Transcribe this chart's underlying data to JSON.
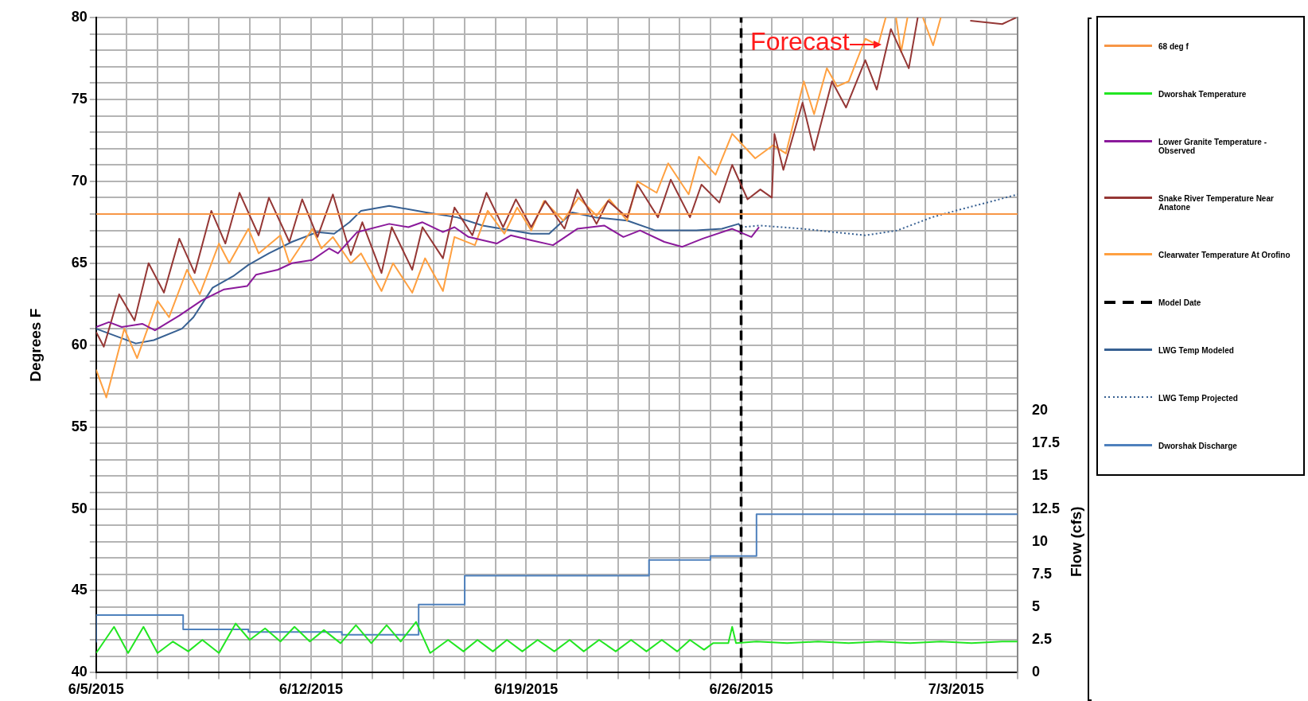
{
  "chart_data": {
    "type": "line",
    "ylabel": "Degrees F",
    "y2label": "Flow (cfs)",
    "xlim": [
      "2015-06-05",
      "2015-07-05"
    ],
    "xticks": [
      {
        "value": "2015-06-05",
        "label": "6/5/2015"
      },
      {
        "value": "2015-06-06",
        "label": null
      },
      {
        "value": "2015-06-07",
        "label": null
      },
      {
        "value": "2015-06-08",
        "label": null
      },
      {
        "value": "2015-06-09",
        "label": null
      },
      {
        "value": "2015-06-10",
        "label": null
      },
      {
        "value": "2015-06-11",
        "label": null
      },
      {
        "value": "2015-06-12",
        "label": "6/12/2015"
      },
      {
        "value": "2015-06-13",
        "label": null
      },
      {
        "value": "2015-06-14",
        "label": null
      },
      {
        "value": "2015-06-15",
        "label": null
      },
      {
        "value": "2015-06-16",
        "label": null
      },
      {
        "value": "2015-06-17",
        "label": null
      },
      {
        "value": "2015-06-18",
        "label": null
      },
      {
        "value": "2015-06-19",
        "label": "6/19/2015"
      },
      {
        "value": "2015-06-20",
        "label": null
      },
      {
        "value": "2015-06-21",
        "label": null
      },
      {
        "value": "2015-06-22",
        "label": null
      },
      {
        "value": "2015-06-23",
        "label": null
      },
      {
        "value": "2015-06-24",
        "label": null
      },
      {
        "value": "2015-06-25",
        "label": null
      },
      {
        "value": "2015-06-26",
        "label": "6/26/2015"
      },
      {
        "value": "2015-06-27",
        "label": null
      },
      {
        "value": "2015-06-28",
        "label": null
      },
      {
        "value": "2015-06-29",
        "label": null
      },
      {
        "value": "2015-06-30",
        "label": null
      },
      {
        "value": "2015-07-01",
        "label": null
      },
      {
        "value": "2015-07-02",
        "label": null
      },
      {
        "value": "2015-07-03",
        "label": "7/3/2015"
      },
      {
        "value": "2015-07-04",
        "label": null
      },
      {
        "value": "2015-07-05",
        "label": null
      }
    ],
    "ylim": [
      40,
      80
    ],
    "yticks": [
      40,
      {
        "value": 41,
        "label": null
      },
      {
        "value": 42,
        "label": null
      },
      {
        "value": 43,
        "label": null
      },
      {
        "value": 44,
        "label": null
      },
      45,
      {
        "value": 46,
        "label": null
      },
      {
        "value": 47,
        "label": null
      },
      {
        "value": 48,
        "label": null
      },
      {
        "value": 49,
        "label": null
      },
      50,
      {
        "value": 51,
        "label": null
      },
      {
        "value": 52,
        "label": null
      },
      {
        "value": 53,
        "label": null
      },
      {
        "value": 54,
        "label": null
      },
      55,
      {
        "value": 56,
        "label": null
      },
      {
        "value": 57,
        "label": null
      },
      {
        "value": 58,
        "label": null
      },
      {
        "value": 59,
        "label": null
      },
      60,
      {
        "value": 61,
        "label": null
      },
      {
        "value": 62,
        "label": null
      },
      {
        "value": 63,
        "label": null
      },
      {
        "value": 64,
        "label": null
      },
      65,
      {
        "value": 66,
        "label": null
      },
      {
        "value": 67,
        "label": null
      },
      {
        "value": 68,
        "label": null
      },
      {
        "value": 69,
        "label": null
      },
      70,
      {
        "value": 71,
        "label": null
      },
      {
        "value": 72,
        "label": null
      },
      {
        "value": 73,
        "label": null
      },
      {
        "value": 74,
        "label": null
      },
      75,
      {
        "value": 76,
        "label": null
      },
      {
        "value": 77,
        "label": null
      },
      {
        "value": 78,
        "label": null
      },
      {
        "value": 79,
        "label": null
      },
      80
    ],
    "y2lim": [
      0,
      50
    ],
    "y2ticks": [
      0,
      2.5,
      5,
      7.5,
      10,
      12.5,
      15,
      17.5,
      20
    ],
    "grid": true,
    "legend": "right",
    "marker": "none",
    "annotations": [
      "Forecast"
    ],
    "series": [
      {
        "name": "68 deg f",
        "color": "#f79646",
        "x": [
          "2015-06-05",
          "2015-07-05"
        ],
        "values": [
          68,
          68
        ]
      },
      {
        "name": "Dworshak Temperature",
        "color": "#22e622",
        "x": [
          "2015-06-05T00:00",
          "2015-06-05T14:00",
          "2015-06-06T01:00",
          "2015-06-06T13:00",
          "2015-06-07T00:00",
          "2015-06-07T12:00",
          "2015-06-08T00:00",
          "2015-06-08T11:00",
          "2015-06-09T00:00",
          "2015-06-09T13:00",
          "2015-06-10T00:00",
          "2015-06-10T12:00",
          "2015-06-11T00:00",
          "2015-06-11T11:00",
          "2015-06-11T23:00",
          "2015-06-12T10:00",
          "2015-06-12T23:00",
          "2015-06-13T11:00",
          "2015-06-13T23:00",
          "2015-06-14T11:00",
          "2015-06-14T22:00",
          "2015-06-15T10:00",
          "2015-06-15T21:00",
          "2015-06-16T11:00",
          "2015-06-16T23:00",
          "2015-06-17T10:00",
          "2015-06-17T22:00",
          "2015-06-18T09:00",
          "2015-06-18T21:00",
          "2015-06-19T09:00",
          "2015-06-19T22:00",
          "2015-06-20T10:00",
          "2015-06-20T21:00",
          "2015-06-21T09:00",
          "2015-06-21T22:00",
          "2015-06-22T10:00",
          "2015-06-22T22:00",
          "2015-06-23T10:00",
          "2015-06-23T22:00",
          "2015-06-24T08:00",
          "2015-06-24T19:00",
          "2015-06-25T02:00",
          "2015-06-25T14:00",
          "2015-06-25T17:00",
          "2015-06-25T20:00",
          "2015-06-26T12:00",
          "2015-06-27T12:00",
          "2015-06-28T12:00",
          "2015-06-29T12:00",
          "2015-06-30T12:00",
          "2015-07-01T12:00",
          "2015-07-02T12:00",
          "2015-07-03T12:00",
          "2015-07-04T12:00",
          "2015-07-05T00:00"
        ],
        "values": [
          41.2,
          42.8,
          41.2,
          42.8,
          41.2,
          41.9,
          41.3,
          42.0,
          41.2,
          43.0,
          42.0,
          42.7,
          41.9,
          42.8,
          41.9,
          42.6,
          41.8,
          42.9,
          41.8,
          42.9,
          41.9,
          43.1,
          41.2,
          42.0,
          41.3,
          42.0,
          41.3,
          42.0,
          41.3,
          42.0,
          41.3,
          42.0,
          41.3,
          42.0,
          41.3,
          42.0,
          41.3,
          42.0,
          41.3,
          42.0,
          41.4,
          41.8,
          41.8,
          42.8,
          41.8,
          41.9,
          41.8,
          41.9,
          41.8,
          41.9,
          41.8,
          41.9,
          41.8,
          41.9,
          41.9
        ]
      },
      {
        "name": "Lower Granite Temperature - Observed",
        "color": "#8b1a9b",
        "x": [
          "2015-06-05T00:00",
          "2015-06-05T10:00",
          "2015-06-05T20:00",
          "2015-06-06T12:00",
          "2015-06-06T22:00",
          "2015-06-07T17:00",
          "2015-06-08T10:00",
          "2015-06-09T04:00",
          "2015-06-09T22:00",
          "2015-06-10T05:00",
          "2015-06-10T22:00",
          "2015-06-11T09:00",
          "2015-06-12T01:00",
          "2015-06-12T14:00",
          "2015-06-12T21:00",
          "2015-06-13T12:00",
          "2015-06-14T13:00",
          "2015-06-15T04:00",
          "2015-06-15T15:00",
          "2015-06-16T07:00",
          "2015-06-16T16:00",
          "2015-06-17T03:00",
          "2015-06-18T01:00",
          "2015-06-18T12:00",
          "2015-06-19T04:00",
          "2015-06-19T21:00",
          "2015-06-20T16:00",
          "2015-06-21T13:00",
          "2015-06-22T04:00",
          "2015-06-22T17:00",
          "2015-06-23T12:00",
          "2015-06-24T02:00",
          "2015-06-24T18:00",
          "2015-06-25T17:00",
          "2015-06-26T08:00",
          "2015-06-26T14:00"
        ],
        "values": [
          61.1,
          61.4,
          61.1,
          61.3,
          60.9,
          61.8,
          62.7,
          63.4,
          63.6,
          64.3,
          64.6,
          65.0,
          65.2,
          65.9,
          65.6,
          66.9,
          67.4,
          67.2,
          67.5,
          66.9,
          67.2,
          66.6,
          66.2,
          66.7,
          66.4,
          66.1,
          67.1,
          67.3,
          66.6,
          67.0,
          66.3,
          66.0,
          66.5,
          67.1,
          66.6,
          67.2
        ]
      },
      {
        "name": "Snake River Temperature Near Anatone",
        "color": "#953735",
        "x": [
          "2015-06-05T00:00",
          "2015-06-05T06:00",
          "2015-06-05T18:00",
          "2015-06-06T06:00",
          "2015-06-06T17:00",
          "2015-06-07T05:00",
          "2015-06-07T17:00",
          "2015-06-08T05:00",
          "2015-06-08T18:00",
          "2015-06-09T05:00",
          "2015-06-09T16:00",
          "2015-06-10T07:00",
          "2015-06-10T15:00",
          "2015-06-11T07:00",
          "2015-06-11T17:00",
          "2015-06-12T05:00",
          "2015-06-12T17:00",
          "2015-06-13T07:00",
          "2015-06-13T16:00",
          "2015-06-14T07:00",
          "2015-06-14T15:00",
          "2015-06-15T07:00",
          "2015-06-15T15:00",
          "2015-06-16T07:00",
          "2015-06-16T16:00",
          "2015-06-17T06:00",
          "2015-06-17T17:00",
          "2015-06-18T06:00",
          "2015-06-18T16:00",
          "2015-06-19T04:00",
          "2015-06-19T15:00",
          "2015-06-20T06:00",
          "2015-06-20T16:00",
          "2015-06-21T07:00",
          "2015-06-21T16:00",
          "2015-06-22T07:00",
          "2015-06-22T15:00",
          "2015-06-23T07:00",
          "2015-06-23T17:00",
          "2015-06-24T08:00",
          "2015-06-24T17:00",
          "2015-06-25T07:00",
          "2015-06-25T17:00",
          "2015-06-26T05:00",
          "2015-06-26T15:00",
          "2015-06-27T00:00",
          "2015-06-27T02:00",
          "2015-06-27T09:00",
          "2015-06-28T00:00",
          "2015-06-28T09:00",
          "2015-06-28T23:00",
          "2015-06-29T10:00",
          "2015-06-30T01:00",
          "2015-06-30T10:00",
          "2015-06-30T21:00",
          "2015-07-01T11:00",
          "2015-07-01T18:00",
          "2015-07-02T12:00",
          "2015-07-03T11:00",
          "2015-07-04T12:00",
          "2015-07-04T23:00"
        ],
        "values": [
          60.8,
          59.9,
          63.1,
          61.5,
          65.0,
          63.2,
          66.5,
          64.4,
          68.2,
          66.2,
          69.3,
          66.7,
          69.0,
          66.3,
          68.9,
          66.6,
          69.2,
          65.5,
          67.5,
          64.4,
          67.2,
          64.6,
          67.2,
          65.3,
          68.4,
          66.7,
          69.3,
          67.2,
          68.9,
          67.2,
          68.8,
          67.1,
          69.5,
          67.4,
          68.8,
          67.8,
          69.8,
          67.8,
          70.1,
          67.8,
          69.8,
          68.7,
          71.0,
          68.9,
          69.5,
          69.0,
          72.9,
          70.7,
          74.8,
          71.9,
          76.1,
          74.5,
          77.4,
          75.6,
          79.3,
          76.9,
          80,
          null,
          79.8,
          79.6,
          80
        ]
      },
      {
        "name": "Clearwater Temperature At Orofino",
        "color": "#ffa040",
        "x": [
          "2015-06-05T00:00",
          "2015-06-05T08:00",
          "2015-06-05T22:00",
          "2015-06-06T08:00",
          "2015-06-07T00:00",
          "2015-06-07T09:00",
          "2015-06-07T23:00",
          "2015-06-08T09:00",
          "2015-06-09T00:00",
          "2015-06-09T08:00",
          "2015-06-09T23:00",
          "2015-06-10T07:00",
          "2015-06-11T00:00",
          "2015-06-11T07:00",
          "2015-06-12T01:00",
          "2015-06-12T08:00",
          "2015-06-12T17:00",
          "2015-06-13T07:00",
          "2015-06-13T15:00",
          "2015-06-14T07:00",
          "2015-06-14T16:00",
          "2015-06-15T07:00",
          "2015-06-15T17:00",
          "2015-06-16T07:00",
          "2015-06-16T16:00",
          "2015-06-17T08:00",
          "2015-06-17T18:00",
          "2015-06-18T07:00",
          "2015-06-18T17:00",
          "2015-06-19T04:00",
          "2015-06-19T14:00",
          "2015-06-20T05:00",
          "2015-06-20T17:00",
          "2015-06-21T07:00",
          "2015-06-21T17:00",
          "2015-06-22T07:00",
          "2015-06-22T15:00",
          "2015-06-23T06:00",
          "2015-06-23T15:00",
          "2015-06-24T07:00",
          "2015-06-24T15:00",
          "2015-06-25T04:00",
          "2015-06-25T17:00",
          "2015-06-26T11:00",
          "2015-06-27T01:00",
          "2015-06-27T11:00",
          "2015-06-28T01:00",
          "2015-06-28T09:00",
          "2015-06-28T19:00",
          "2015-06-29T03:00",
          "2015-06-29T12:00",
          "2015-06-30T01:00",
          "2015-06-30T11:00",
          "2015-06-30T17:00",
          "2015-06-30T20:00",
          "2015-07-01T01:00",
          "2015-07-01T05:00",
          "2015-07-01T10:00",
          "2015-07-01T14:00",
          "2015-07-01T22:00",
          "2015-07-02T06:00",
          "2015-07-02T12:00"
        ],
        "values": [
          58.5,
          56.8,
          61.0,
          59.2,
          62.7,
          61.7,
          64.6,
          63.1,
          66.2,
          65.0,
          67.1,
          65.6,
          66.7,
          65.0,
          67.1,
          65.9,
          66.6,
          65.0,
          65.6,
          63.3,
          65.0,
          63.2,
          65.3,
          63.3,
          66.6,
          66.1,
          68.2,
          66.8,
          68.4,
          67.0,
          68.8,
          67.6,
          69.0,
          67.9,
          68.9,
          67.6,
          70.0,
          69.3,
          71.1,
          69.2,
          71.5,
          70.4,
          72.9,
          71.4,
          72.2,
          71.7,
          76.1,
          74.1,
          76.9,
          75.8,
          76.1,
          78.7,
          78.3,
          80,
          null,
          80,
          77.9,
          80,
          null,
          80,
          78.3,
          80
        ]
      },
      {
        "name": "Model Date",
        "color": "#000000",
        "line_style": "dashed",
        "x": [
          "2015-06-26",
          "2015-06-26"
        ],
        "values": [
          40,
          80
        ]
      },
      {
        "name": "LWG Temp Modeled",
        "color": "#376092",
        "x": [
          "2015-06-05T00:00",
          "2015-06-06T07:00",
          "2015-06-06T21:00",
          "2015-06-07T19:00",
          "2015-06-08T04:00",
          "2015-06-08T19:00",
          "2015-06-09T11:00",
          "2015-06-09T23:00",
          "2015-06-10T15:00",
          "2015-06-11T09:00",
          "2015-06-12T05:00",
          "2015-06-12T18:00",
          "2015-06-13T06:00",
          "2015-06-13T15:00",
          "2015-06-14T13:00",
          "2015-06-15T18:00",
          "2015-06-16T18:00",
          "2015-06-17T14:00",
          "2015-06-19T04:00",
          "2015-06-19T18:00",
          "2015-06-20T12:00",
          "2015-06-21T06:00",
          "2015-06-22T07:00",
          "2015-06-23T05:00",
          "2015-06-24T13:00",
          "2015-06-25T09:00",
          "2015-06-25T22:00",
          "2015-06-26T00:00"
        ],
        "values": [
          61.0,
          60.1,
          60.3,
          61.0,
          61.7,
          63.5,
          64.2,
          64.9,
          65.6,
          66.3,
          66.9,
          66.8,
          67.5,
          68.2,
          68.5,
          68.1,
          67.8,
          67.3,
          66.8,
          66.8,
          68.1,
          67.8,
          67.6,
          67.0,
          67.0,
          67.1,
          67.4,
          67.2
        ]
      },
      {
        "name": "LWG Temp Projected",
        "color": "#376092",
        "line_style": "dotted",
        "x": [
          "2015-06-26T00:00",
          "2015-06-26T15:00",
          "2015-06-28T00:00",
          "2015-06-30T01:00",
          "2015-07-01T02:00",
          "2015-07-02T05:00",
          "2015-07-03T04:00",
          "2015-07-04T05:00",
          "2015-07-05T00:00"
        ],
        "values": [
          67.2,
          67.3,
          67.1,
          66.7,
          67.0,
          67.8,
          68.3,
          68.8,
          69.2
        ]
      },
      {
        "name": "Dworshak Discharge",
        "type": "step",
        "axis": "y2",
        "color": "#4f81bd",
        "x": [
          "2015-06-05T00:00",
          "2015-06-07T20:00",
          "2015-06-09T23:00",
          "2015-06-13T00:00",
          "2015-06-15T12:00",
          "2015-06-17T00:00",
          "2015-06-23T00:00",
          "2015-06-25T00:00",
          "2015-06-26T12:00",
          "2015-06-27T00:00",
          "2015-07-05T00:00"
        ],
        "values": [
          2.3,
          4.4,
          3.3,
          3.1,
          2.9,
          5.2,
          7.4,
          8.6,
          8.9,
          12.1,
          12.1
        ]
      }
    ]
  }
}
